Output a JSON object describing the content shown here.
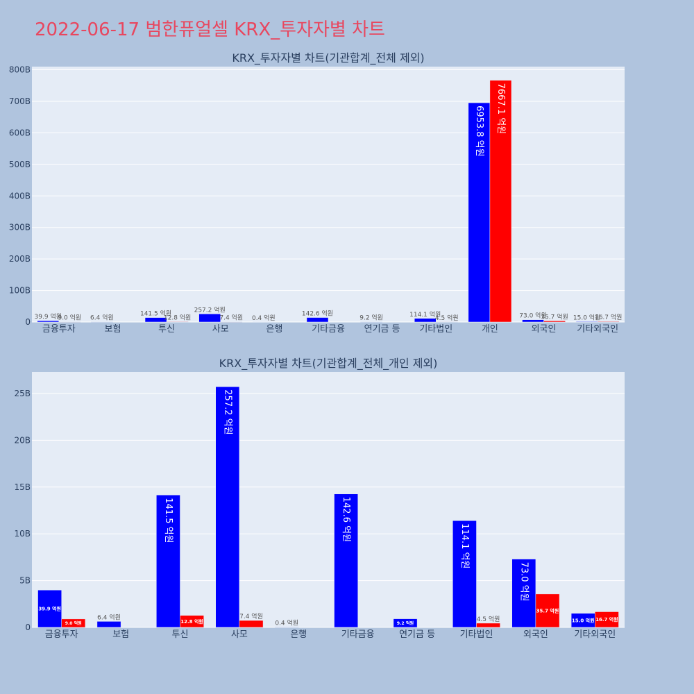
{
  "page_title": "2022-06-17 범한퓨얼셀 KRX_투자자별 차트",
  "colors": {
    "page_bg": "#b0c4de",
    "plot_bg": "#e5ecf6",
    "grid": "#ffffff",
    "title": "#e8475f",
    "buy": "#0000ff",
    "sell": "#ff0000",
    "text": "#2a3f5f"
  },
  "chart_data": [
    {
      "type": "bar",
      "title": "KRX_투자자별 차트(기관합계_전체 제외)",
      "categories": [
        "금융투자",
        "보험",
        "투신",
        "사모",
        "은행",
        "기타금융",
        "연기금 등",
        "기타법인",
        "개인",
        "외국인",
        "기타외국인"
      ],
      "series": [
        {
          "color": "#0000ff",
          "values": [
            3.99,
            0.64,
            14.15,
            25.72,
            0.04,
            14.26,
            0.92,
            11.41,
            695.38,
            7.3,
            1.5
          ],
          "labels": [
            "39.9 억원",
            "6.4 억원",
            "141.5 억원",
            "257.2 억원",
            "0.4 억원",
            "142.6 억원",
            "9.2 억원",
            "114.1 억원",
            "6953.8 억원",
            "73.0 억원",
            "15.0 억원"
          ]
        },
        {
          "color": "#ff0000",
          "values": [
            0.9,
            null,
            1.28,
            0.74,
            null,
            null,
            null,
            0.45,
            766.71,
            3.57,
            1.67
          ],
          "labels": [
            "9.0 억원",
            "",
            "12.8 억원",
            "7.4 억원",
            "",
            "",
            "",
            "4.5 억원",
            "7667.1 억원",
            "35.7 억원",
            "16.7 억원"
          ]
        }
      ],
      "ylim": [
        0,
        810
      ],
      "yticks": [
        0,
        100,
        200,
        300,
        400,
        500,
        600,
        700,
        800
      ],
      "ytick_labels": [
        "0",
        "100B",
        "200B",
        "300B",
        "400B",
        "500B",
        "600B",
        "700B",
        "800B"
      ],
      "grid": true
    },
    {
      "type": "bar",
      "title": "KRX_투자자별 차트(기관합계_전체_개인 제외)",
      "categories": [
        "금융투자",
        "보험",
        "투신",
        "사모",
        "은행",
        "기타금융",
        "연기금 등",
        "기타법인",
        "외국인",
        "기타외국인"
      ],
      "series": [
        {
          "color": "#0000ff",
          "values": [
            3.99,
            0.64,
            14.15,
            25.72,
            0.04,
            14.26,
            0.92,
            11.41,
            7.3,
            1.5
          ],
          "labels": [
            "39.9 억원",
            "6.4 억원",
            "141.5 억원",
            "257.2 억원",
            "0.4 억원",
            "142.6 억원",
            "9.2 억원",
            "114.1 억원",
            "73.0 억원",
            "15.0 억원"
          ]
        },
        {
          "color": "#ff0000",
          "values": [
            0.9,
            null,
            1.28,
            0.74,
            null,
            null,
            null,
            0.45,
            3.57,
            1.67
          ],
          "labels": [
            "9.0 억원",
            "",
            "12.8 억원",
            "7.4 억원",
            "",
            "",
            "",
            "4.5 억원",
            "35.7 억원",
            "16.7 억원"
          ]
        }
      ],
      "ylim": [
        0,
        27.3
      ],
      "yticks": [
        0,
        5,
        10,
        15,
        20,
        25
      ],
      "ytick_labels": [
        "0",
        "5B",
        "10B",
        "15B",
        "20B",
        "25B"
      ],
      "grid": true
    }
  ]
}
